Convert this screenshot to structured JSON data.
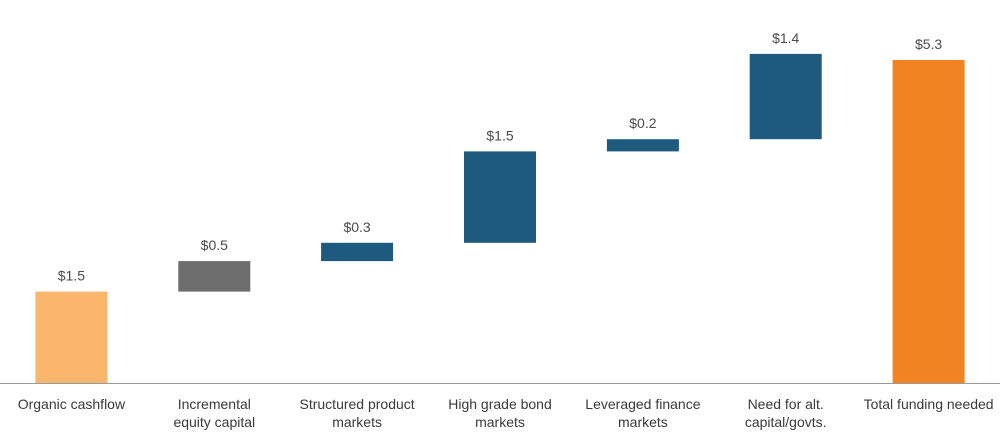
{
  "chart_data": {
    "type": "bar",
    "subtype": "waterfall",
    "title": "",
    "xlabel": "",
    "ylabel": "",
    "ylim": [
      0,
      5.3
    ],
    "grid": false,
    "legend": "none",
    "categories": [
      [
        "Organic cashflow"
      ],
      [
        "Incremental",
        "equity capital"
      ],
      [
        "Structured product",
        "markets"
      ],
      [
        "High grade bond",
        "markets"
      ],
      [
        "Leveraged finance",
        "markets"
      ],
      [
        "Need for alt.",
        "capital/govts."
      ],
      [
        "Total funding needed"
      ]
    ],
    "values": [
      1.5,
      0.5,
      0.3,
      1.5,
      0.2,
      1.4,
      5.3
    ],
    "bar_bottoms": [
      0,
      1.5,
      2.0,
      2.3,
      3.8,
      4.0,
      0
    ],
    "labels": [
      "$1.5",
      "$0.5",
      "$0.3",
      "$1.5",
      "$0.2",
      "$1.4",
      "$5.3"
    ],
    "colors": [
      "#f9b66c",
      "#6e6e6e",
      "#1d5a7d",
      "#1d5a7d",
      "#1d5a7d",
      "#1d5a7d",
      "#f28322"
    ]
  }
}
